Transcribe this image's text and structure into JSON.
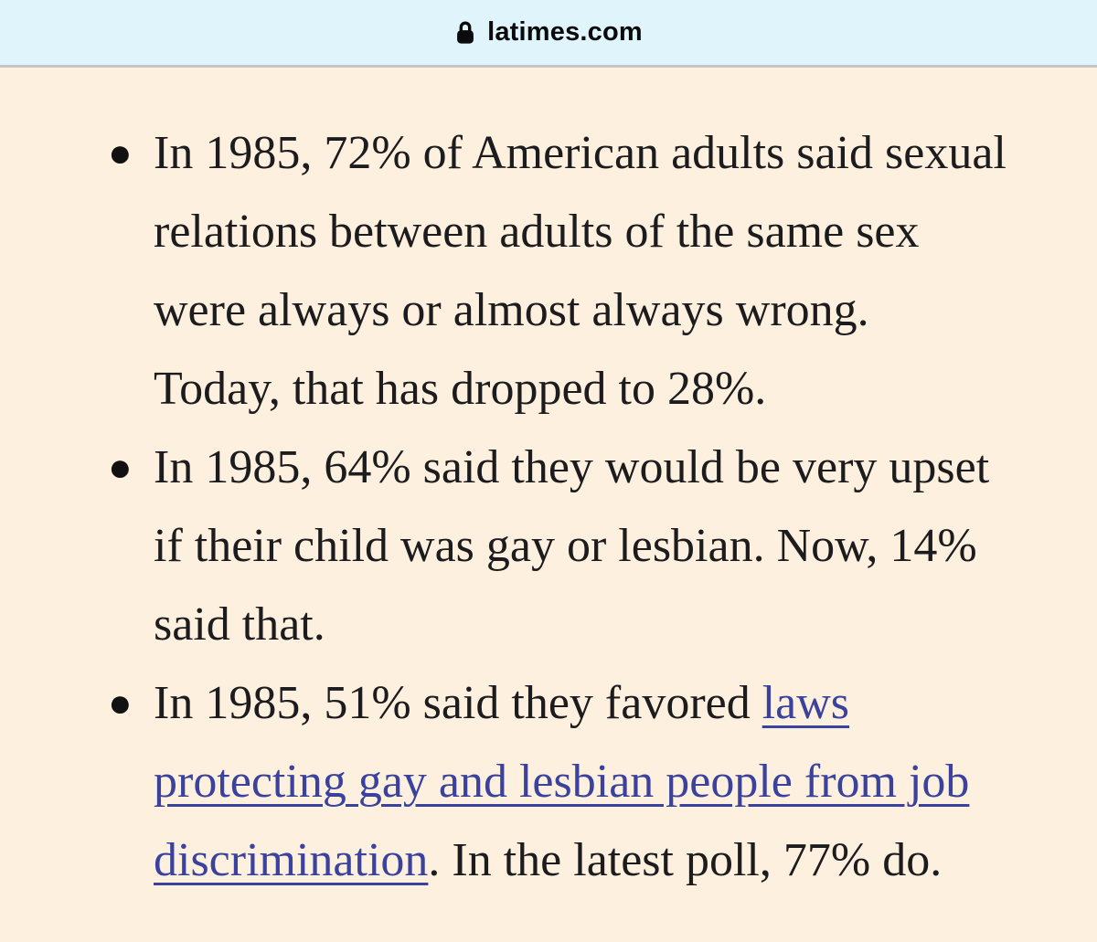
{
  "header": {
    "url": "latimes.com",
    "lock_icon": "lock"
  },
  "colors": {
    "url_bar_bg": "#e0f4fb",
    "divider": "#c3c6c7",
    "content_bg": "#fdf0de",
    "text": "#1c1c1e",
    "link": "#3b429d"
  },
  "list": {
    "bullet_glyph": "●",
    "bullets": [
      {
        "lines": [
          [
            {
              "t": "In 1985, 72% of American adults said sexual"
            }
          ],
          [
            {
              "t": "relations between adults of the same sex"
            }
          ],
          [
            {
              "t": "were always or almost always wrong."
            }
          ],
          [
            {
              "t": "Today, that has dropped to 28%."
            }
          ]
        ]
      },
      {
        "lines": [
          [
            {
              "t": "In 1985, 64% said they would be very upset"
            }
          ],
          [
            {
              "t": "if their child was gay or lesbian. Now, 14%"
            }
          ],
          [
            {
              "t": "said that."
            }
          ]
        ]
      },
      {
        "lines": [
          [
            {
              "t": "In 1985, 51% said they favored "
            },
            {
              "t": "laws",
              "link": true
            }
          ],
          [
            {
              "t": "protecting gay and lesbian people from job",
              "link": true
            }
          ],
          [
            {
              "t": "discrimination",
              "link": true
            },
            {
              "t": ". In the latest poll, 77% do."
            }
          ]
        ]
      }
    ]
  }
}
